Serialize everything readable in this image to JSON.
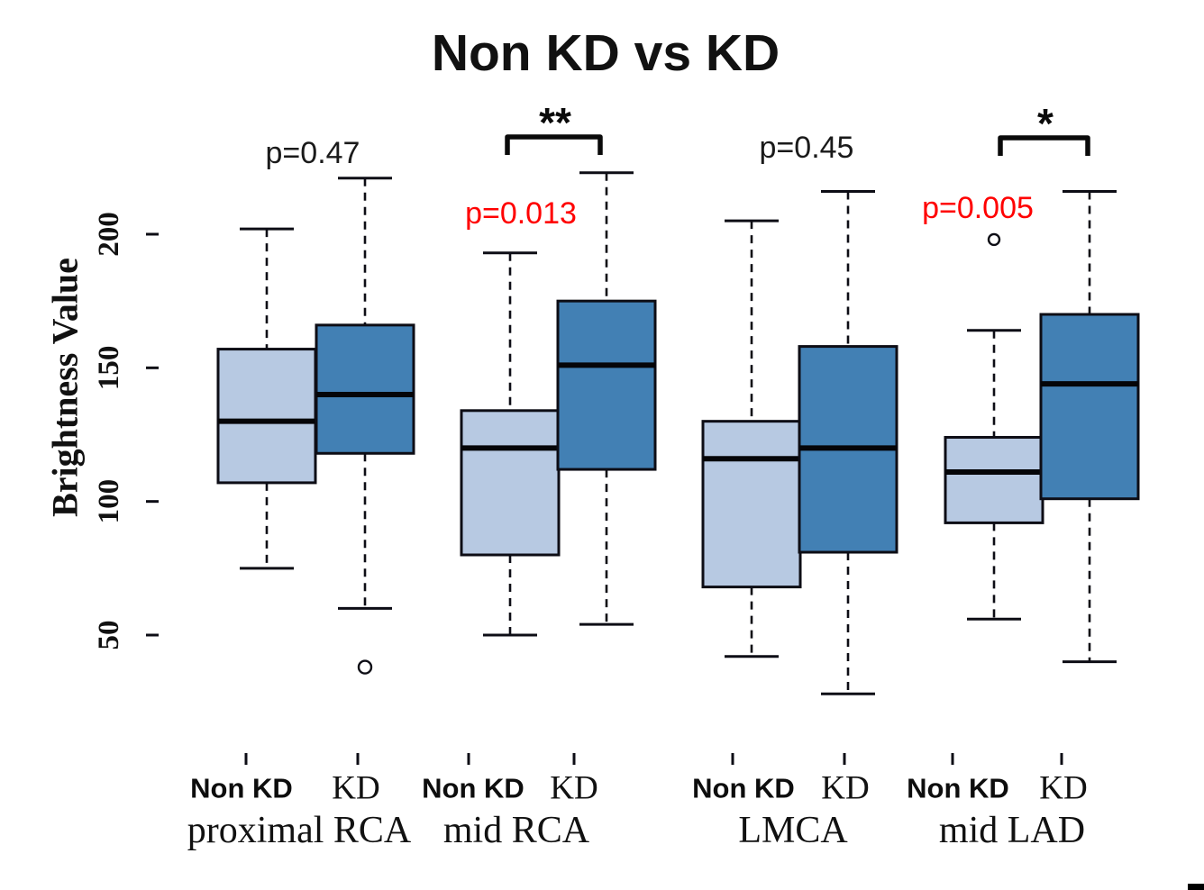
{
  "chart_data": {
    "type": "boxplot",
    "title": "Non KD vs KD",
    "ylabel": "Brightness Value",
    "xlabel": "",
    "yticks": [
      50,
      100,
      150,
      200
    ],
    "ylim": [
      25,
      230
    ],
    "grid": false,
    "legend": "none",
    "series_names": [
      "Non KD",
      "KD"
    ],
    "groups": [
      {
        "segment": "proximal RCA",
        "p_label": "p=0.47",
        "p_significant": false,
        "significance_marker": "",
        "series": [
          {
            "name": "Non KD",
            "min": 75,
            "q1": 107,
            "median": 130,
            "q3": 157,
            "max": 202,
            "outliers": []
          },
          {
            "name": "KD",
            "min": 60,
            "q1": 118,
            "median": 140,
            "q3": 166,
            "max": 221,
            "outliers": [
              38
            ]
          }
        ]
      },
      {
        "segment": "mid RCA",
        "p_label": "p=0.013",
        "p_significant": true,
        "significance_marker": "**",
        "series": [
          {
            "name": "Non KD",
            "min": 50,
            "q1": 80,
            "median": 120,
            "q3": 134,
            "max": 193,
            "outliers": []
          },
          {
            "name": "KD",
            "min": 54,
            "q1": 112,
            "median": 151,
            "q3": 175,
            "max": 223,
            "outliers": []
          }
        ]
      },
      {
        "segment": "LMCA",
        "p_label": "p=0.45",
        "p_significant": false,
        "significance_marker": "",
        "series": [
          {
            "name": "Non KD",
            "min": 42,
            "q1": 68,
            "median": 116,
            "q3": 130,
            "max": 205,
            "outliers": []
          },
          {
            "name": "KD",
            "min": 28,
            "q1": 81,
            "median": 120,
            "q3": 158,
            "max": 216,
            "outliers": []
          }
        ]
      },
      {
        "segment": "mid LAD",
        "p_label": "p=0.005",
        "p_significant": true,
        "significance_marker": "*",
        "series": [
          {
            "name": "Non KD",
            "min": 56,
            "q1": 92,
            "median": 111,
            "q3": 124,
            "max": 164,
            "outliers": [
              198
            ]
          },
          {
            "name": "KD",
            "min": 40,
            "q1": 101,
            "median": 144,
            "q3": 170,
            "max": 216,
            "outliers": []
          }
        ]
      }
    ],
    "colors": {
      "box_non_kd": "#b7c9e2",
      "box_kd": "#4280b4",
      "line": "#0d0d15",
      "p_default": "#1a1a1a",
      "p_highlight": "#ff0000"
    }
  }
}
